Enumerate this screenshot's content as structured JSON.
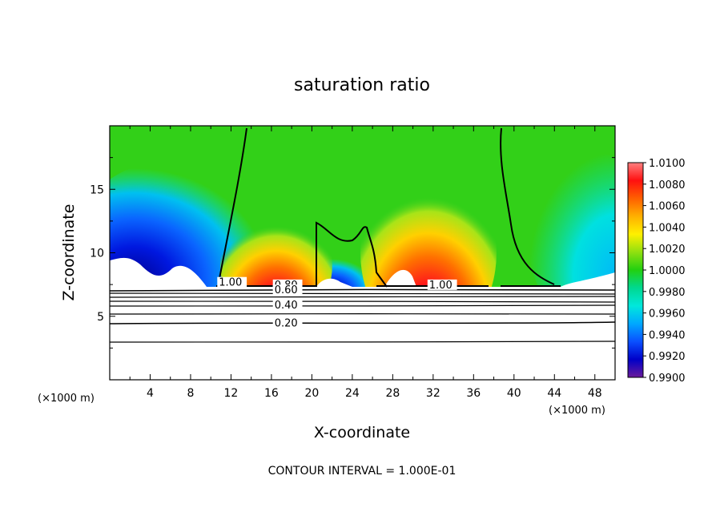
{
  "chart_data": {
    "type": "heatmap",
    "title": "saturation ratio",
    "xlabel": "X-coordinate",
    "ylabel": "Z-coordinate",
    "x_unit": "(×1000 m)",
    "xlim": [
      0,
      50
    ],
    "ylim": [
      0,
      20
    ],
    "x_ticks": [
      "4",
      "8",
      "12",
      "16",
      "20",
      "24",
      "28",
      "32",
      "36",
      "40",
      "44",
      "48"
    ],
    "y_ticks": [
      "5",
      "10",
      "15"
    ],
    "colorbar": {
      "range": [
        0.99,
        1.01
      ],
      "ticks": [
        "1.0100",
        "1.0080",
        "1.0060",
        "1.0040",
        "1.0020",
        "1.0000",
        "0.9980",
        "0.9960",
        "0.9940",
        "0.9920",
        "0.9900"
      ],
      "colors": [
        "#6a1a9a",
        "#0000c8",
        "#0a50ff",
        "#00a8ff",
        "#00e8dc",
        "#00d890",
        "#22d010",
        "#90e010",
        "#fff000",
        "#ffb000",
        "#ff6000",
        "#ff1010",
        "#ff8080"
      ]
    },
    "contour_labels": [
      {
        "text": "1.00",
        "x": 10.8,
        "z": 7.4
      },
      {
        "text": "0.80",
        "x": 16.3,
        "z": 7.2
      },
      {
        "text": "0.60",
        "x": 16.3,
        "z": 6.8
      },
      {
        "text": "0.40",
        "x": 16.3,
        "z": 5.6
      },
      {
        "text": "0.20",
        "x": 16.3,
        "z": 4.2
      },
      {
        "text": "1.00",
        "x": 31.6,
        "z": 7.2
      }
    ],
    "contour_interval_text": "CONTOUR INTERVAL = 1.000E-01"
  }
}
